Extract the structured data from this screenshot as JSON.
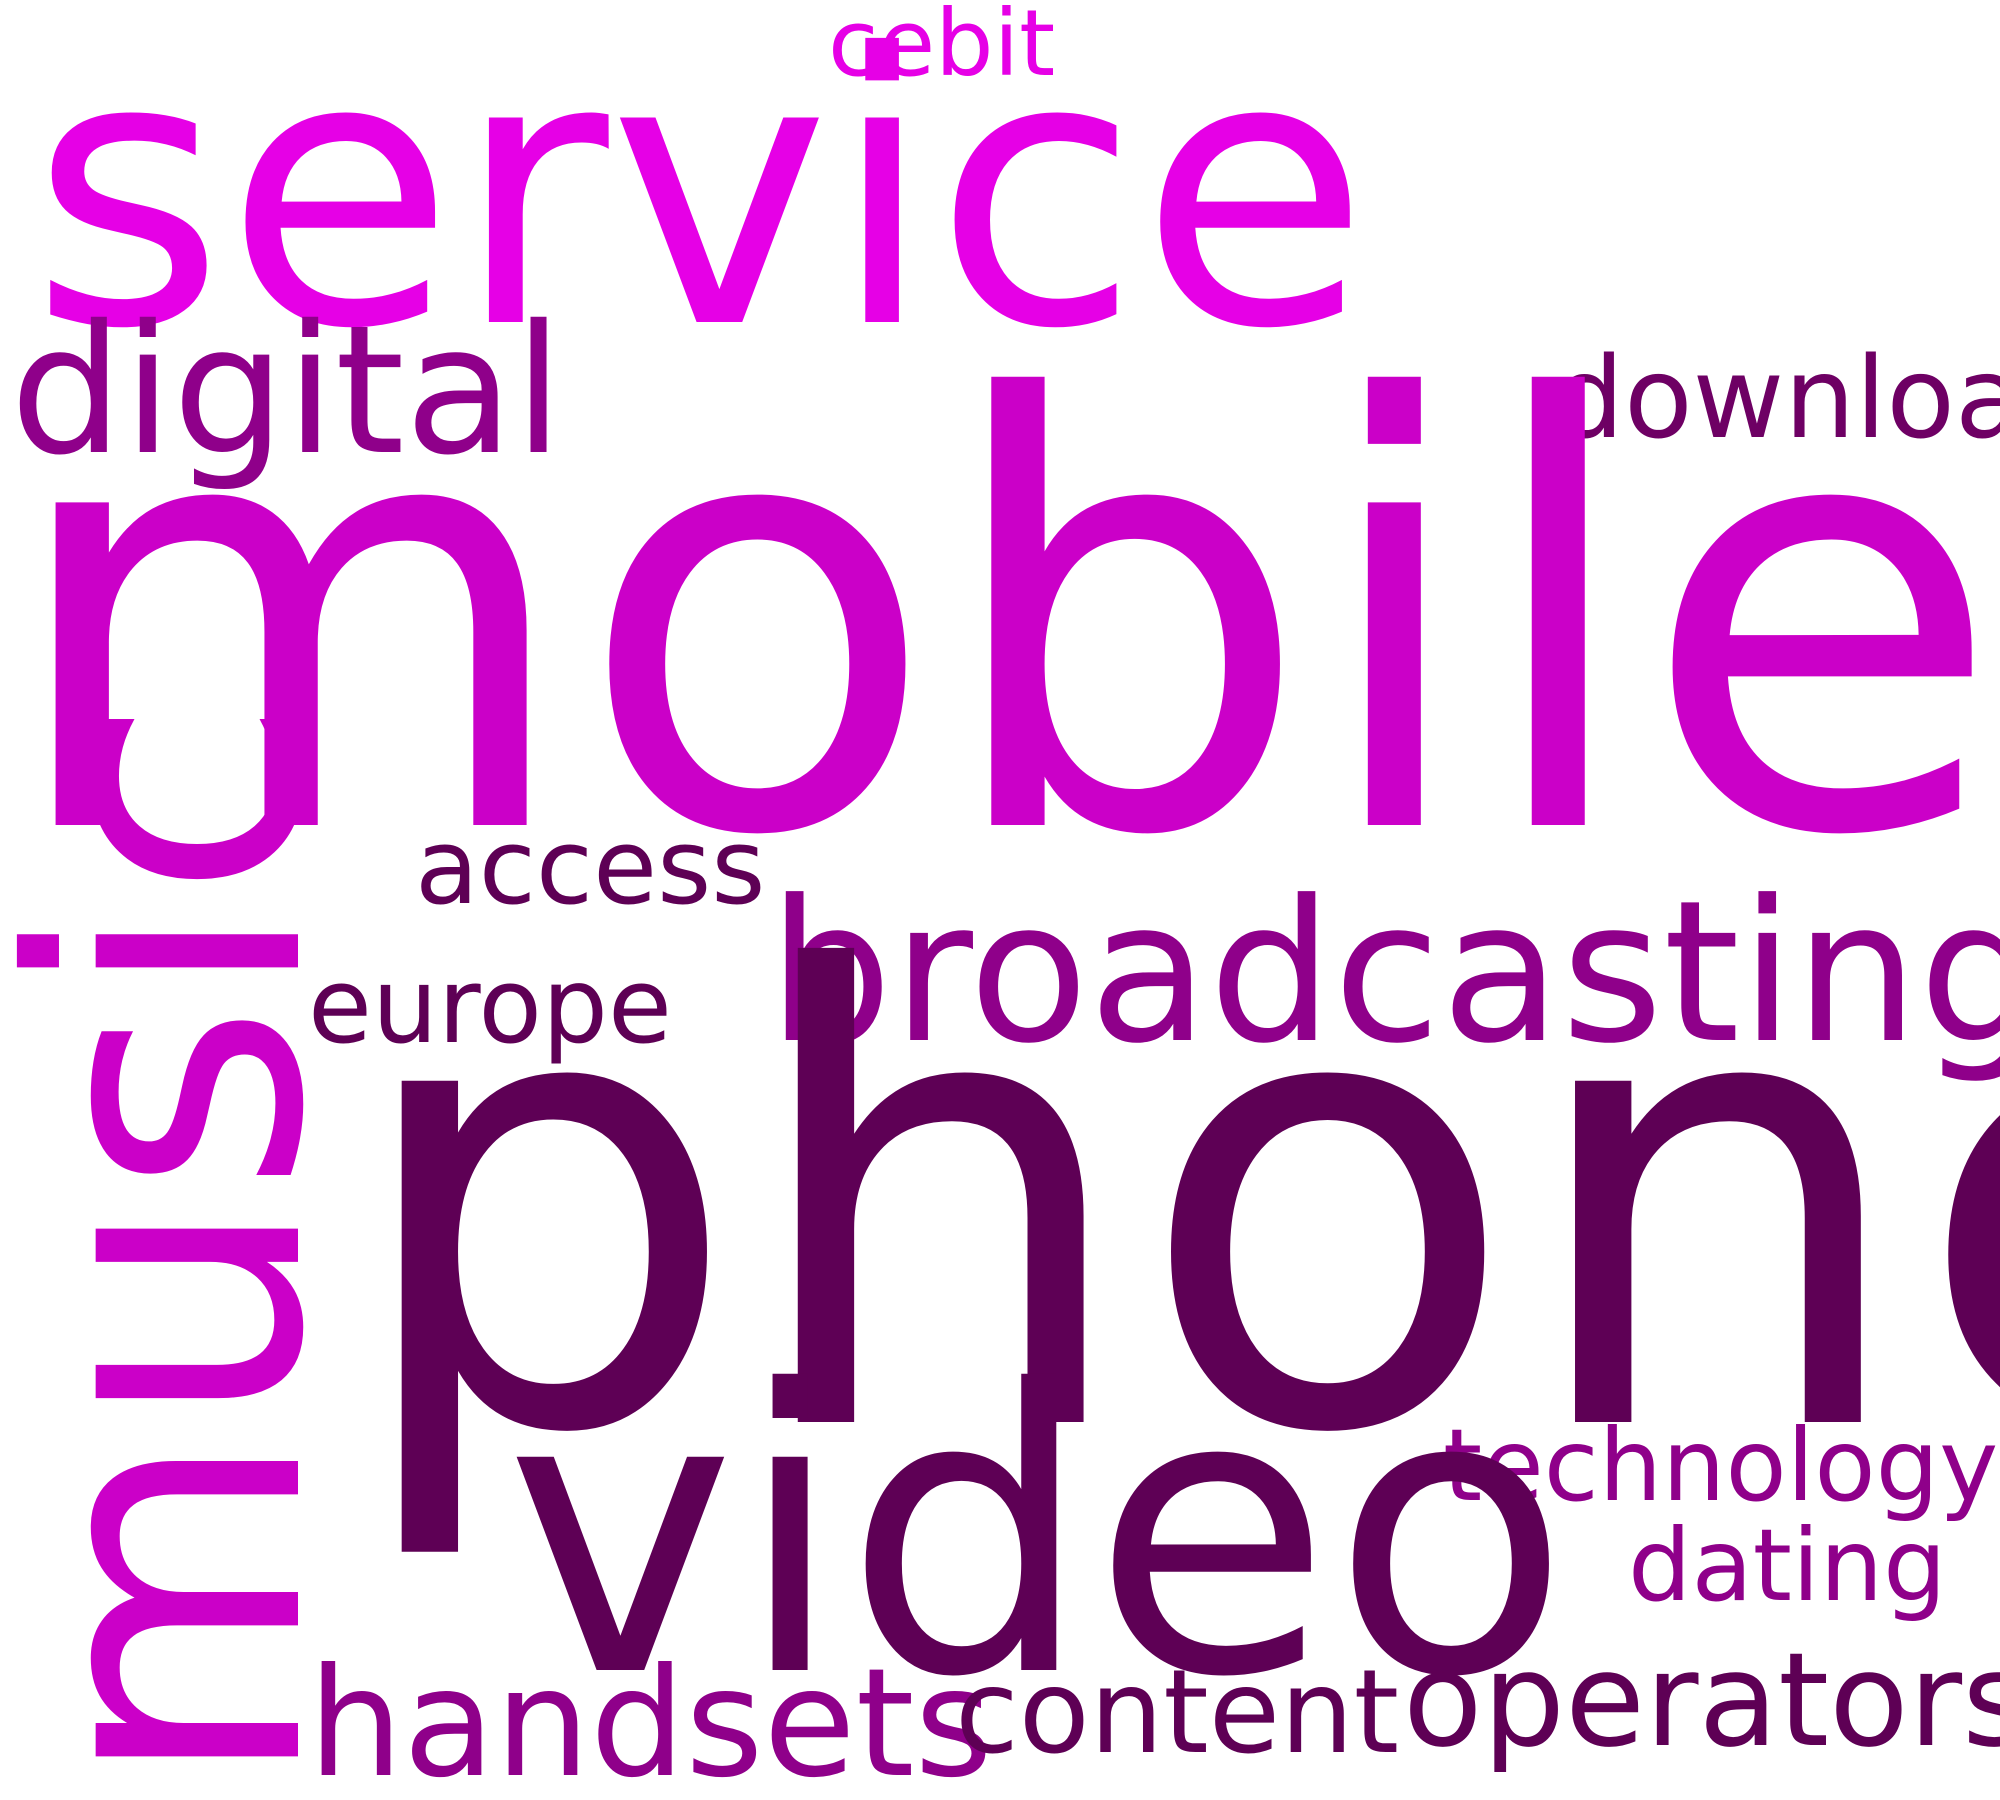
{
  "colors": {
    "background": "#ffffff",
    "dark_purple": "#5e0055",
    "purple": "#8f008a",
    "magenta": "#cb00c8",
    "bright_magenta": "#e600e6",
    "plum": "#6e0064"
  },
  "words": {
    "service": "service",
    "mobile": "mobile",
    "phone": "phone",
    "music": "music",
    "video": "video",
    "broadcasting": "broadcasting",
    "digital": "digital",
    "download": "download",
    "cebit": "cebit",
    "access": "access",
    "europe": "europe",
    "technology": "technology",
    "dating": "dating",
    "handsets": "handsets",
    "content": "content",
    "operators": "operators"
  }
}
